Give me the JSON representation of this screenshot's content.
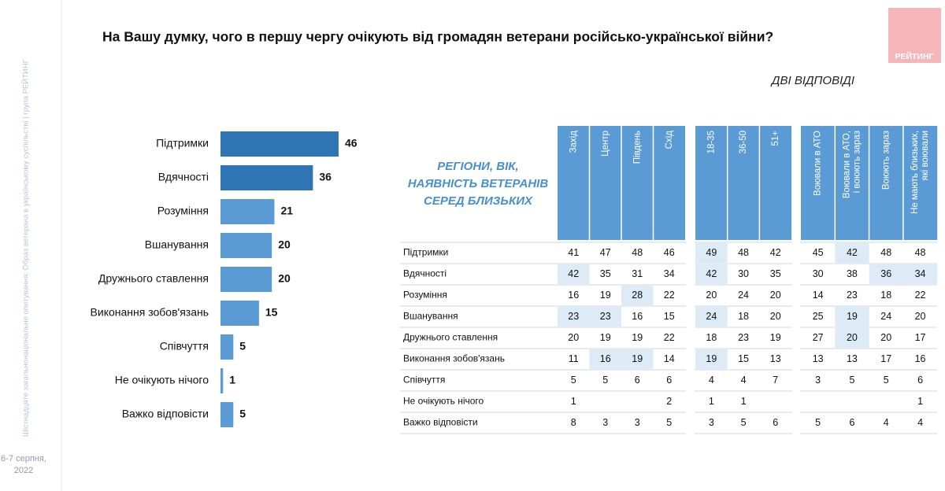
{
  "header": {
    "title": "На Вашу думку, чого в першу чергу очікують від громадян ветерани російсько-української війни?",
    "subtitle": "ДВІ ВІДПОВІДІ",
    "logo": "РЕЙТИНГ"
  },
  "sidebar": {
    "text": "Шістнадцяте загальнонаціональне опитування: Образ ветерана в українському суспільстві | група РЕЙТИНГ",
    "date": [
      "6-7 серпня,",
      "2022"
    ]
  },
  "chart_data": {
    "type": "hbar",
    "categories": [
      "Підтримки",
      "Вдячності",
      "Розуміння",
      "Вшанування",
      "Дружнього ставлення",
      "Виконання зобов'язань",
      "Співчуття",
      "Не очікують нічого",
      "Важко відповісти"
    ],
    "values": [
      46,
      36,
      21,
      20,
      20,
      15,
      5,
      1,
      5
    ],
    "colors": [
      "#2e75b6",
      "#2e75b6",
      "#5b9bd5",
      "#5b9bd5",
      "#5b9bd5",
      "#5b9bd5",
      "#5b9bd5",
      "#5b9bd5",
      "#5b9bd5"
    ]
  },
  "table": {
    "label": [
      "РЕГІОНИ, ВІК,",
      "НАЯВНІСТЬ ВЕТЕРАНІВ",
      "СЕРЕД БЛИЗЬКИХ"
    ],
    "groups": [
      [
        [
          "Захід"
        ],
        [
          "Центр"
        ],
        [
          "Південь"
        ],
        [
          "Схід"
        ]
      ],
      [
        [
          "18-35"
        ],
        [
          "36-50"
        ],
        [
          "51+"
        ]
      ],
      [
        [
          "Воювали в АТО"
        ],
        [
          "Воювали в АТО,",
          "і воюють зараз"
        ],
        [
          "Воюють зараз"
        ],
        [
          "Не мають близьких,",
          "які воювали"
        ]
      ]
    ],
    "rows": [
      [
        "Підтримки",
        41,
        47,
        48,
        46,
        49,
        48,
        42,
        45,
        42,
        48,
        48
      ],
      [
        "Вдячності",
        42,
        35,
        31,
        34,
        42,
        30,
        35,
        30,
        38,
        36,
        34
      ],
      [
        "Розуміння",
        16,
        19,
        28,
        22,
        20,
        24,
        20,
        14,
        23,
        18,
        22
      ],
      [
        "Вшанування",
        23,
        23,
        16,
        15,
        24,
        18,
        20,
        25,
        19,
        24,
        20
      ],
      [
        "Дружнього ставлення",
        20,
        19,
        19,
        22,
        18,
        23,
        19,
        27,
        20,
        20,
        17
      ],
      [
        "Виконання зобов'язань",
        11,
        16,
        19,
        14,
        19,
        15,
        13,
        13,
        13,
        17,
        16
      ],
      [
        "Співчуття",
        5,
        5,
        6,
        6,
        4,
        4,
        7,
        3,
        5,
        5,
        6
      ],
      [
        "Не очікують нічого",
        1,
        null,
        null,
        2,
        1,
        1,
        null,
        null,
        null,
        null,
        1
      ],
      [
        "Важко відповісти",
        8,
        3,
        3,
        5,
        3,
        5,
        6,
        5,
        6,
        4,
        4
      ]
    ]
  }
}
